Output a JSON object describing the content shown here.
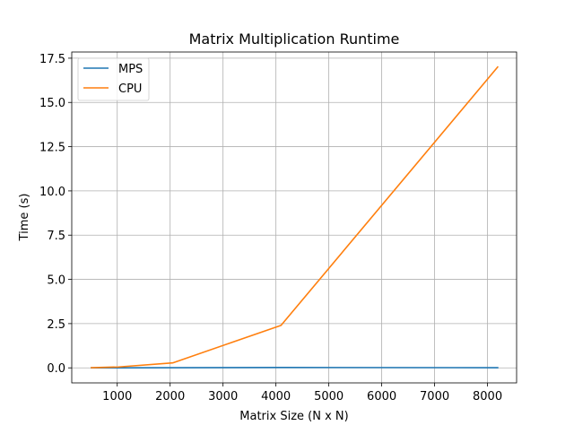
{
  "chart_data": {
    "type": "line",
    "title": "Matrix Multiplication Runtime",
    "xlabel": "Matrix Size (N x N)",
    "ylabel": "Time (s)",
    "xlim": [
      140,
      8550
    ],
    "ylim": [
      -0.85,
      17.85
    ],
    "x_ticks": [
      1000,
      2000,
      3000,
      4000,
      5000,
      6000,
      7000,
      8000
    ],
    "y_ticks": [
      0.0,
      2.5,
      5.0,
      7.5,
      10.0,
      12.5,
      15.0,
      17.5
    ],
    "x_tick_labels": [
      "1000",
      "2000",
      "3000",
      "4000",
      "5000",
      "6000",
      "7000",
      "8000"
    ],
    "y_tick_labels": [
      "0.0",
      "2.5",
      "5.0",
      "7.5",
      "10.0",
      "12.5",
      "15.0",
      "17.5"
    ],
    "grid": true,
    "legend_position": "upper left",
    "x": [
      512,
      1024,
      2048,
      4096,
      8192
    ],
    "series": [
      {
        "name": "MPS",
        "color": "#1f77b4",
        "values": [
          0.0,
          0.0,
          0.01,
          0.02,
          0.01
        ]
      },
      {
        "name": "CPU",
        "color": "#ff7f0e",
        "values": [
          0.01,
          0.05,
          0.28,
          2.4,
          17.0
        ]
      }
    ]
  }
}
